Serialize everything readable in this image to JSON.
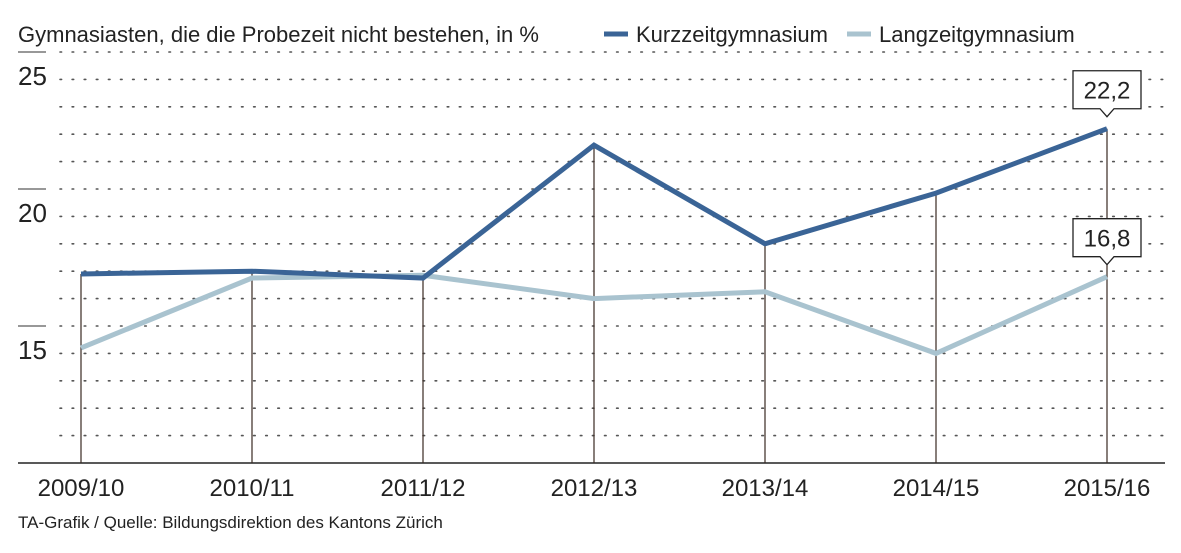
{
  "chart_data": {
    "type": "line",
    "title": "Gymnasiasten, die die Probezeit nicht bestehen, in %",
    "categories": [
      "2009/10",
      "2010/11",
      "2011/12",
      "2012/13",
      "2013/14",
      "2014/15",
      "2015/16"
    ],
    "series": [
      {
        "name": "Kurzzeitgymnasium",
        "color": "#3a6496",
        "values": [
          16.9,
          17.0,
          16.75,
          21.6,
          18.0,
          19.85,
          22.2
        ]
      },
      {
        "name": "Langzeitgymnasium",
        "color": "#a9c3cf",
        "values": [
          14.2,
          16.75,
          16.85,
          16.0,
          16.25,
          14.0,
          16.8
        ]
      }
    ],
    "annotations": [
      {
        "series": "Kurzzeitgymnasium",
        "category": "2015/16",
        "label": "22,2"
      },
      {
        "series": "Langzeitgymnasium",
        "category": "2015/16",
        "label": "16,8"
      }
    ],
    "yticks": [
      {
        "value": 25,
        "label": "25"
      },
      {
        "value": 20,
        "label": "20"
      },
      {
        "value": 15,
        "label": "15"
      }
    ],
    "ylim": [
      10,
      25
    ],
    "grid": true,
    "legend": "top-right",
    "source": "TA-Grafik / Quelle: Bildungsdirektion des Kantons Zürich"
  }
}
